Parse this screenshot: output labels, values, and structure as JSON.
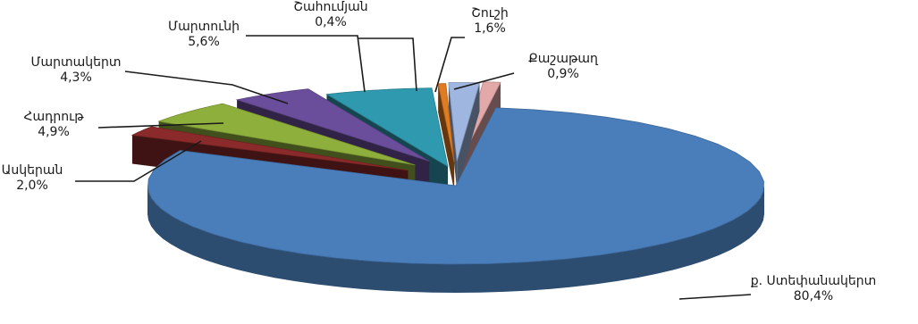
{
  "chart_data": {
    "type": "pie",
    "style": "3d-exploded",
    "categories": [
      "ք. Ստեփանակերտ",
      "Ասկերան",
      "Հադրութ",
      "Մարտակերտ",
      "Մարտունի",
      "Շահումյան",
      "Շուշի",
      "Քաշաթաղ"
    ],
    "values": [
      80.4,
      2.0,
      4.9,
      4.3,
      5.6,
      0.4,
      1.6,
      0.9
    ],
    "value_labels": [
      "80,4%",
      "2,0%",
      "4,9%",
      "4,3%",
      "5,6%",
      "0,4%",
      "1,6%",
      "0,9%"
    ],
    "colors": [
      "#4A7EBB",
      "#8B2A2A",
      "#8FAF3C",
      "#6B4E9B",
      "#2F9AAF",
      "#E07B22",
      "#9FB7E0",
      "#E3A9A9"
    ],
    "title": "",
    "legend": "none"
  }
}
